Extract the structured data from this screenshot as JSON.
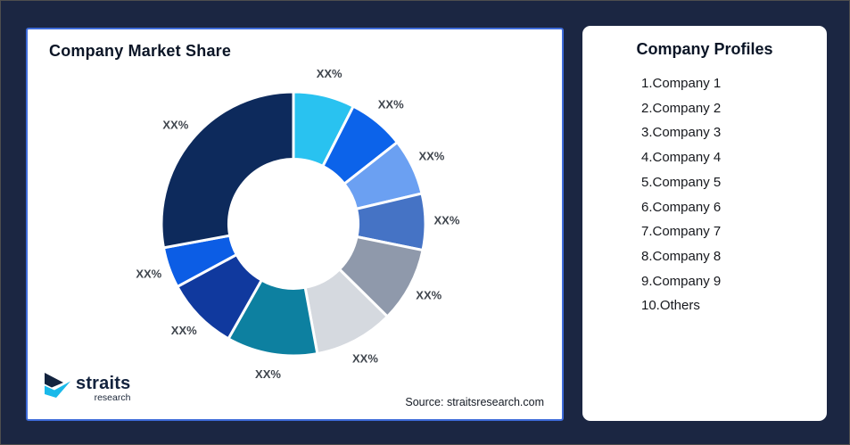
{
  "left_panel": {
    "title": "Company Market Share",
    "source": "Source: straitsresearch.com",
    "logo": {
      "name": "straits",
      "sub": "research"
    }
  },
  "right_panel": {
    "title": "Company Profiles",
    "companies": [
      "1.Company 1",
      "2.Company 2",
      "3.Company 3",
      "4.Company 4",
      "5.Company 5",
      "6.Company 6",
      "7.Company 7",
      "8.Company 8",
      "9.Company 9",
      "10.Others"
    ]
  },
  "chart_data": {
    "type": "pie",
    "variant": "donut",
    "title": "Company Market Share",
    "note": "All slice data labels show placeholder text XX%; slice sizes below are percent-of-circle estimated from arc angles, listed clockwise from 12 o'clock",
    "start_angle_deg": 0,
    "direction": "clockwise",
    "inner_radius_ratio": 0.49,
    "legend": "none",
    "label_color": "#3F454D",
    "gap_color": "#ffffff",
    "segments": [
      {
        "label": "XX%",
        "value": 7.5,
        "color": "#29C2F0"
      },
      {
        "label": "XX%",
        "value": 6.9,
        "color": "#0C63EA"
      },
      {
        "label": "XX%",
        "value": 6.9,
        "color": "#6BA0F2"
      },
      {
        "label": "XX%",
        "value": 6.9,
        "color": "#4573C5"
      },
      {
        "label": "XX%",
        "value": 9.2,
        "color": "#8F99AB"
      },
      {
        "label": "XX%",
        "value": 9.7,
        "color": "#D5D9DF"
      },
      {
        "label": "XX%",
        "value": 11.1,
        "color": "#0D80A0"
      },
      {
        "label": "XX%",
        "value": 8.9,
        "color": "#10399E"
      },
      {
        "label": "XX%",
        "value": 5.0,
        "color": "#0C5DE5"
      },
      {
        "label": "XX%",
        "value": 27.9,
        "color": "#0D2A5C"
      }
    ],
    "colors": {
      "background": "#1B2642",
      "panel_border": "#3E6BD9",
      "logo_dark": "#13233E",
      "logo_cyan": "#19B9EA"
    }
  }
}
